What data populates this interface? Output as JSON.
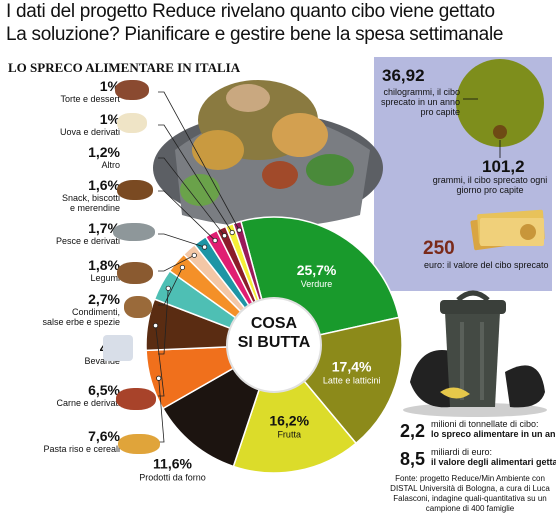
{
  "headline": {
    "line1": "I dati del progetto Reduce rivelano quanto cibo viene gettato",
    "line2": "La soluzione? Pianificare e gestire bene la spesa settimanale"
  },
  "section_title": "LO SPRECO ALIMENTARE IN ITALIA",
  "center_label": {
    "line1": "COSA",
    "line2": "SI BUTTA"
  },
  "chart_data": {
    "type": "pie",
    "title": "LO SPRECO ALIMENTARE IN ITALIA",
    "unit": "%",
    "slices": [
      {
        "label": "Verdure",
        "pct_label": "25,7%",
        "value": 25.7,
        "color": "#199a2c"
      },
      {
        "label": "Latte e latticini",
        "pct_label": "17,4%",
        "value": 17.4,
        "color": "#8c8a1a"
      },
      {
        "label": "Frutta",
        "pct_label": "16,2%",
        "value": 16.2,
        "color": "#dcdc2a"
      },
      {
        "label": "Prodotti da forno",
        "pct_label": "11,6%",
        "value": 11.6,
        "color": "#1c1410"
      },
      {
        "label": "Pasta riso e cereali",
        "pct_label": "7,6%",
        "value": 7.6,
        "color": "#f0701c"
      },
      {
        "label": "Carne e derivati",
        "pct_label": "6,5%",
        "value": 6.5,
        "color": "#5a2c12"
      },
      {
        "label": "Bevande",
        "pct_label": "4%",
        "value": 4.0,
        "color": "#4ebfb4"
      },
      {
        "label": "Condimenti, salse erbe e spezie",
        "pct_label": "2,7%",
        "value": 2.7,
        "color": "#f49028"
      },
      {
        "label": "Legumi",
        "pct_label": "1,8%",
        "value": 1.8,
        "color": "#f3c7a6"
      },
      {
        "label": "Pesce e derivati",
        "pct_label": "1,7%",
        "value": 1.7,
        "color": "#1e95a5"
      },
      {
        "label": "Snack, biscotti e merendine",
        "pct_label": "1,6%",
        "value": 1.6,
        "color": "#e01e72"
      },
      {
        "label": "Altro",
        "pct_label": "1,2%",
        "value": 1.2,
        "color": "#8b1c2a"
      },
      {
        "label": "Uova e derivati",
        "pct_label": "1%",
        "value": 1.0,
        "color": "#f5ee38"
      },
      {
        "label": "Torte e dessert",
        "pct_label": "1%",
        "value": 1.0,
        "color": "#9a1a5a"
      }
    ]
  },
  "left_labels": [
    {
      "pct": "1%",
      "name": "Torte e dessert"
    },
    {
      "pct": "1%",
      "name": "Uova e derivati"
    },
    {
      "pct": "1,2%",
      "name": "Altro"
    },
    {
      "pct": "1,6%",
      "name": "Snack, biscotti\ne merendine"
    },
    {
      "pct": "1,7%",
      "name": "Pesce e derivati"
    },
    {
      "pct": "1,8%",
      "name": "Legumi"
    },
    {
      "pct": "2,7%",
      "name": "Condimenti,\nsalse erbe e spezie"
    },
    {
      "pct": "4%",
      "name": "Bevande"
    },
    {
      "pct": "6,5%",
      "name": "Carne e derivati"
    },
    {
      "pct": "7,6%",
      "name": "Pasta riso e cereali"
    }
  ],
  "side_stats": {
    "kg_value": "36,92",
    "kg_text": "chilogrammi, il cibo sprecato in un anno pro capite",
    "g_value": "101,2",
    "g_text": "grammi, il cibo sprecato ogni giorno pro capite",
    "eur_value": "250",
    "eur_text": "euro: il valore del cibo sprecato",
    "tons_value": "2,2",
    "tons_text_1": "milioni di tonnellate di cibo:",
    "tons_text_2": "lo spreco alimentare in un anno",
    "eur_total_value": "8,5",
    "eur_total_text_1": "miliardi di euro:",
    "eur_total_text_2": "il valore degli alimentari gettati",
    "source": "Fonte: progetto Reduce/Min Ambiente con DISTAL Università di Bologna, a cura di Luca Falasconi, indagine quali-quantitativa su un campione di 400 famiglie"
  },
  "colors": {
    "panel": "#b5b9df",
    "green_circle": "#7e8e1c",
    "brown_dot": "#6e4a14"
  }
}
